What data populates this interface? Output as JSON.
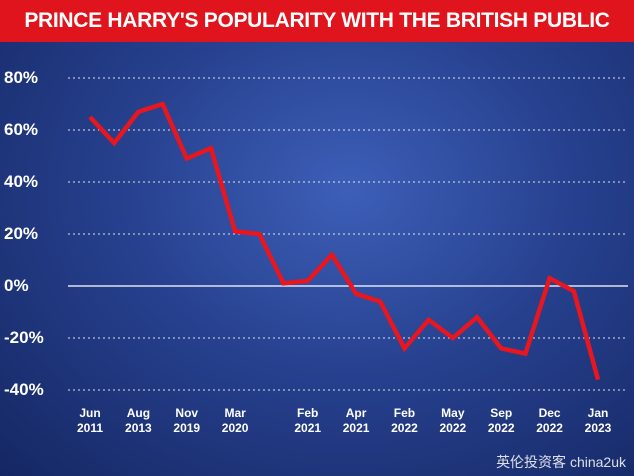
{
  "chart_data": {
    "type": "line",
    "title": "PRINCE HARRY'S POPULARITY WITH THE BRITISH PUBLIC",
    "watermark": "英伦投资客 chinа2uk",
    "categories": [
      "Jun 2011",
      null,
      "Aug 2013",
      null,
      "Nov 2019",
      null,
      "Mar 2020",
      null,
      null,
      "Feb 2021",
      null,
      "Apr 2021",
      null,
      "Feb 2022",
      null,
      "May 2022",
      null,
      "Sep 2022",
      null,
      "Dec 2022",
      null,
      "Jan 2023"
    ],
    "values": [
      65,
      55,
      67,
      70,
      49,
      53,
      21,
      20,
      1,
      2,
      12,
      -3,
      -6,
      -24,
      -13,
      -20,
      -12,
      -24,
      -26,
      3,
      -2,
      -36
    ],
    "color": "#e8161e",
    "ylim": [
      -40,
      80
    ],
    "yticks": [
      {
        "value": -40,
        "label": "-40%"
      },
      {
        "value": -20,
        "label": "-20%"
      },
      {
        "value": 0,
        "label": "0%"
      },
      {
        "value": 20,
        "label": "20%"
      },
      {
        "value": 40,
        "label": "40%"
      },
      {
        "value": 60,
        "label": "60%"
      },
      {
        "value": 80,
        "label": "80%"
      }
    ],
    "grid": true
  }
}
